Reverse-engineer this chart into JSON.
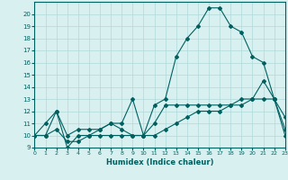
{
  "xlabel": "Humidex (Indice chaleur)",
  "x": [
    0,
    1,
    2,
    3,
    4,
    5,
    6,
    7,
    8,
    9,
    10,
    11,
    12,
    13,
    14,
    15,
    16,
    17,
    18,
    19,
    20,
    21,
    22,
    23
  ],
  "line1": [
    10.0,
    11.0,
    12.0,
    10.0,
    10.5,
    10.5,
    10.5,
    11.0,
    11.0,
    13.0,
    10.0,
    12.5,
    13.0,
    16.5,
    18.0,
    19.0,
    20.5,
    20.5,
    19.0,
    18.5,
    16.5,
    16.0,
    13.0,
    11.5
  ],
  "line2": [
    10.0,
    10.0,
    12.0,
    9.0,
    10.0,
    10.0,
    10.5,
    11.0,
    10.5,
    10.0,
    10.0,
    11.0,
    12.5,
    12.5,
    12.5,
    12.5,
    12.5,
    12.5,
    12.5,
    13.0,
    13.0,
    13.0,
    13.0,
    10.5
  ],
  "line3": [
    10.0,
    10.0,
    10.5,
    9.5,
    9.5,
    10.0,
    10.0,
    10.0,
    10.0,
    10.0,
    10.0,
    10.0,
    10.5,
    11.0,
    11.5,
    12.0,
    12.0,
    12.0,
    12.5,
    12.5,
    13.0,
    14.5,
    13.0,
    10.0
  ],
  "ylim": [
    9,
    21
  ],
  "xlim": [
    0,
    23
  ],
  "yticks": [
    9,
    10,
    11,
    12,
    13,
    14,
    15,
    16,
    17,
    18,
    19,
    20
  ],
  "xticks": [
    0,
    1,
    2,
    3,
    4,
    5,
    6,
    7,
    8,
    9,
    10,
    11,
    12,
    13,
    14,
    15,
    16,
    17,
    18,
    19,
    20,
    21,
    22,
    23
  ],
  "line_color": "#006060",
  "bg_color": "#d8f0f0",
  "grid_color": "#b0d8d8",
  "marker": "D",
  "marker_size": 2.0,
  "linewidth": 0.8
}
